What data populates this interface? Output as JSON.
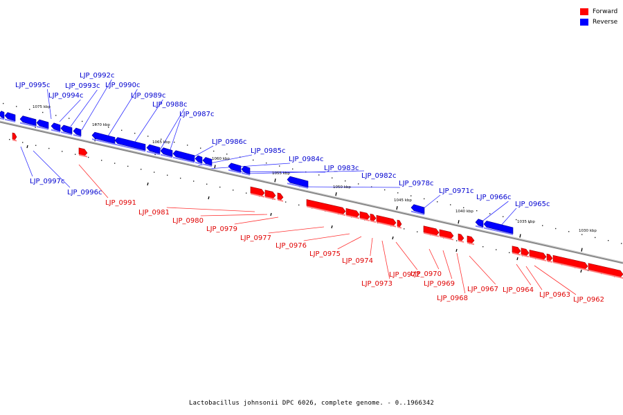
{
  "legend": {
    "forward_label": "Forward",
    "reverse_label": "Reverse",
    "forward_color": "#ff0000",
    "reverse_color": "#0000ff"
  },
  "caption": "Lactobacillus johnsonii DPC 6026, complete genome. - 0..1966342",
  "chart_data": {
    "type": "genome-track",
    "strands": [
      "Forward",
      "Reverse"
    ],
    "scale_labels": [
      "1075 kbp",
      "1070 kbp",
      "1065 kbp",
      "1060 kbp",
      "1055 kbp",
      "1050 kbp",
      "1045 kbp",
      "1040 kbp",
      "1035 kbp",
      "1030 kbp"
    ],
    "genes": [
      {
        "label": "LJP_0995c",
        "strand": "reverse"
      },
      {
        "label": "LJP_0994c",
        "strand": "reverse"
      },
      {
        "label": "LJP_0993c",
        "strand": "reverse"
      },
      {
        "label": "LJP_0992c",
        "strand": "reverse"
      },
      {
        "label": "LJP_0990c",
        "strand": "reverse"
      },
      {
        "label": "LJP_0989c",
        "strand": "reverse"
      },
      {
        "label": "LJP_0988c",
        "strand": "reverse"
      },
      {
        "label": "LJP_0987c",
        "strand": "reverse"
      },
      {
        "label": "LJP_0986c",
        "strand": "reverse"
      },
      {
        "label": "LJP_0985c",
        "strand": "reverse"
      },
      {
        "label": "LJP_0984c",
        "strand": "reverse"
      },
      {
        "label": "LJP_0983c",
        "strand": "reverse"
      },
      {
        "label": "LJP_0982c",
        "strand": "reverse"
      },
      {
        "label": "LJP_0978c",
        "strand": "reverse"
      },
      {
        "label": "LJP_0971c",
        "strand": "reverse"
      },
      {
        "label": "LJP_0966c",
        "strand": "reverse"
      },
      {
        "label": "LJP_0965c",
        "strand": "reverse"
      },
      {
        "label": "LJP_0997c",
        "strand": "reverse"
      },
      {
        "label": "LJP_0996c",
        "strand": "reverse"
      },
      {
        "label": "LJP_0991",
        "strand": "forward"
      },
      {
        "label": "LJP_0981",
        "strand": "forward"
      },
      {
        "label": "LJP_0980",
        "strand": "forward"
      },
      {
        "label": "LJP_0979",
        "strand": "forward"
      },
      {
        "label": "LJP_0977",
        "strand": "forward"
      },
      {
        "label": "LJP_0976",
        "strand": "forward"
      },
      {
        "label": "LJP_0975",
        "strand": "forward"
      },
      {
        "label": "LJP_0974",
        "strand": "forward"
      },
      {
        "label": "LJP_0972",
        "strand": "forward"
      },
      {
        "label": "LJP_0973",
        "strand": "forward"
      },
      {
        "label": "LJP_0970",
        "strand": "forward"
      },
      {
        "label": "LJP_0969",
        "strand": "forward"
      },
      {
        "label": "LJP_0968",
        "strand": "forward"
      },
      {
        "label": "LJP_0967",
        "strand": "forward"
      },
      {
        "label": "LJP_0964",
        "strand": "forward"
      },
      {
        "label": "LJP_0963",
        "strand": "forward"
      },
      {
        "label": "LJP_0962",
        "strand": "forward"
      }
    ]
  }
}
